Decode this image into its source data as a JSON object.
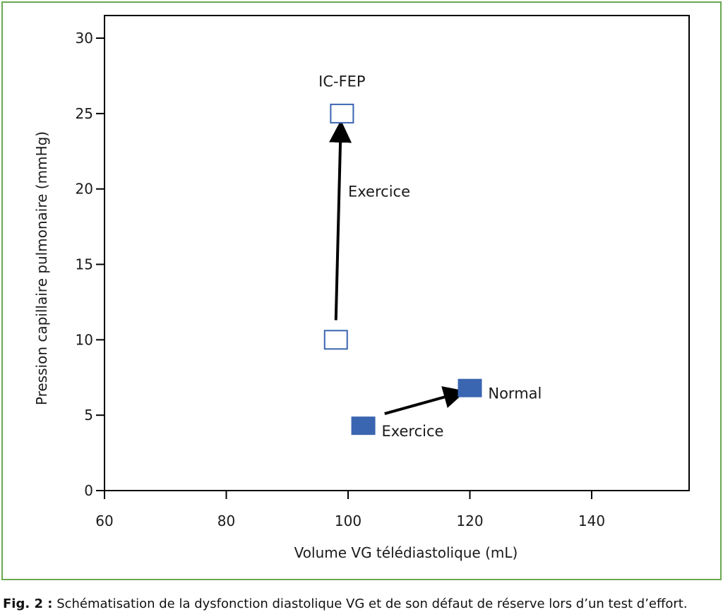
{
  "caption": {
    "label": "Fig. 2 :",
    "text": "Schématisation de la dysfonction diastolique VG et de son défaut de réserve lors d’un test d’effort."
  },
  "colors": {
    "frame": "#6aa84f",
    "marker": "#3a65b0",
    "arrow": "#000000",
    "axis": "#000000"
  },
  "chart_data": {
    "type": "scatter",
    "title": "",
    "xlabel": "Volume VG télédiastolique (mL)",
    "ylabel": "Pression capillaire pulmonaire (mmHg)",
    "xlim": [
      60,
      156
    ],
    "ylim": [
      0,
      31.5
    ],
    "xticks": [
      60,
      80,
      100,
      120,
      140
    ],
    "yticks": [
      0,
      5,
      10,
      15,
      20,
      25,
      30
    ],
    "grid": false,
    "series": [
      {
        "name": "IC-FEP",
        "marker": "open-square",
        "points": [
          {
            "x": 98,
            "y": 10
          },
          {
            "x": 99,
            "y": 25
          }
        ]
      },
      {
        "name": "Normal",
        "marker": "filled-square",
        "points": [
          {
            "x": 102.5,
            "y": 4.3
          },
          {
            "x": 120,
            "y": 6.8
          }
        ]
      }
    ],
    "arrows": [
      {
        "from": {
          "x": 98,
          "y": 11.3
        },
        "to": {
          "x": 98.8,
          "y": 24.2
        }
      },
      {
        "from": {
          "x": 106,
          "y": 5.1
        },
        "to": {
          "x": 118.5,
          "y": 6.5
        }
      }
    ],
    "annotations": [
      {
        "text": "IC-FEP",
        "x": 99,
        "y": 26.8,
        "anchor": "middle"
      },
      {
        "text": "Exercice",
        "x": 100,
        "y": 19.5,
        "anchor": "start"
      },
      {
        "text": "Normal",
        "x": 123,
        "y": 6.1,
        "anchor": "start"
      },
      {
        "text": "Exercice",
        "x": 105.5,
        "y": 3.6,
        "anchor": "start"
      }
    ]
  }
}
